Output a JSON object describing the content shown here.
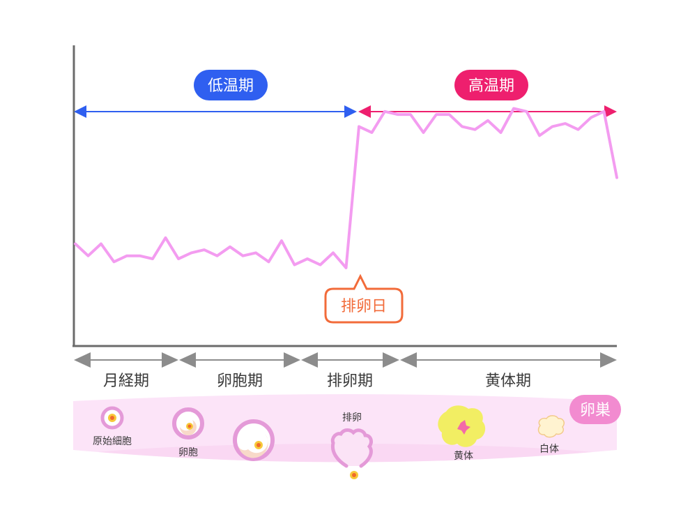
{
  "colors": {
    "axis": "#6b6b6b",
    "low": "#2f5ff0",
    "high": "#ee1f6e",
    "curve": "#f39cf0",
    "ovulation_day": "#f26b3a",
    "phase_arrow": "#8c8c8c",
    "ovary_band": "#fce4f8",
    "ovary_badge": "#f28bd0",
    "follicle_ring": "#e49ad8",
    "corpus_luteum": "#f2ee63",
    "corpus_albicans": "#fff3d0"
  },
  "temperature": {
    "low_label": "低温期",
    "high_label": "高温期",
    "ovulation_day_label": "排卵日",
    "values": [
      0.34,
      0.3,
      0.34,
      0.28,
      0.3,
      0.3,
      0.29,
      0.36,
      0.29,
      0.31,
      0.32,
      0.3,
      0.33,
      0.3,
      0.31,
      0.28,
      0.35,
      0.27,
      0.29,
      0.27,
      0.31,
      0.26,
      0.73,
      0.71,
      0.78,
      0.77,
      0.77,
      0.71,
      0.77,
      0.77,
      0.73,
      0.72,
      0.75,
      0.71,
      0.79,
      0.78,
      0.7,
      0.73,
      0.74,
      0.72,
      0.76,
      0.78,
      0.56
    ]
  },
  "phases": [
    {
      "label": "月経期"
    },
    {
      "label": "卵胞期"
    },
    {
      "label": "排卵期"
    },
    {
      "label": "黄体期"
    }
  ],
  "ovary": {
    "badge": "卵巣",
    "stages": {
      "primordial": "原始細胞",
      "follicle": "卵胞",
      "ovulation": "排卵",
      "corpus_luteum": "黄体",
      "corpus_albicans": "白体"
    }
  }
}
